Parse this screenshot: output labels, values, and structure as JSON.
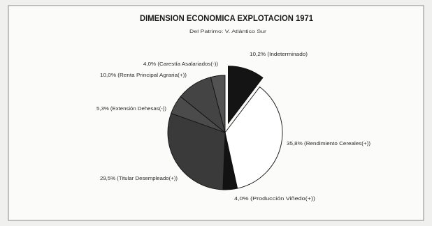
{
  "chart_data": {
    "type": "pie",
    "title": "DIMENSION ECONOMICA EXPLOTACION 1971",
    "subtitle": "Del Patrimo: V. Atlántico Sur",
    "labels": [
      "10,2% (Indeterminado)",
      "35,8% (Rendimiento Cereales(+))",
      "4,0% (Producción Viñedo(+))",
      "29,5% (Titular Desempleado(+))",
      "5,3% (Extensión Dehesas(-))",
      "10,0% (Renta Principal Agraria(+))",
      "4,0% (Carestía Asalariados(-))"
    ],
    "values": [
      10.2,
      35.8,
      4.0,
      29.5,
      5.3,
      10.0,
      4.0
    ],
    "colors": [
      "#141414",
      "#ffffff",
      "#121212",
      "#3a3a3a",
      "#4b4b4b",
      "#444444",
      "#525252"
    ],
    "exploded": [
      true,
      false,
      false,
      false,
      false,
      false,
      false
    ]
  }
}
